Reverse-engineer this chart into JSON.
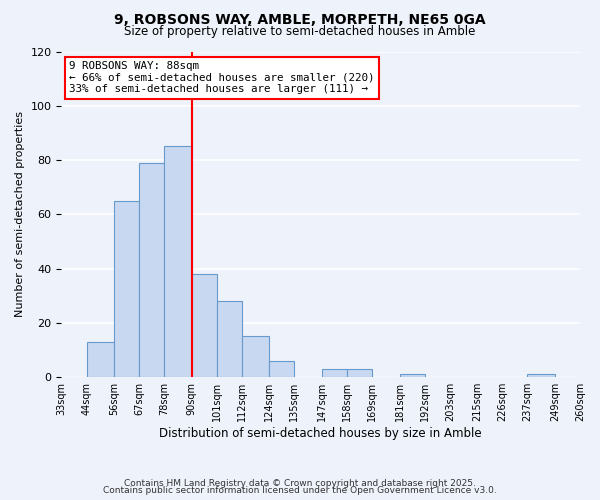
{
  "title": "9, ROBSONS WAY, AMBLE, MORPETH, NE65 0GA",
  "subtitle": "Size of property relative to semi-detached houses in Amble",
  "xlabel": "Distribution of semi-detached houses by size in Amble",
  "ylabel": "Number of semi-detached properties",
  "bin_labels": [
    "33sqm",
    "44sqm",
    "56sqm",
    "67sqm",
    "78sqm",
    "90sqm",
    "101sqm",
    "112sqm",
    "124sqm",
    "135sqm",
    "147sqm",
    "158sqm",
    "169sqm",
    "181sqm",
    "192sqm",
    "203sqm",
    "215sqm",
    "226sqm",
    "237sqm",
    "249sqm",
    "260sqm"
  ],
  "bin_edges": [
    33,
    44,
    56,
    67,
    78,
    90,
    101,
    112,
    124,
    135,
    147,
    158,
    169,
    181,
    192,
    203,
    215,
    226,
    237,
    249,
    260
  ],
  "bar_heights": [
    0,
    13,
    65,
    79,
    85,
    38,
    28,
    15,
    6,
    0,
    3,
    3,
    0,
    1,
    0,
    0,
    0,
    0,
    1,
    0,
    0
  ],
  "bar_color": "#c8d8f0",
  "bar_edge_color": "#6699cc",
  "vline_x": 90,
  "vline_color": "red",
  "annotation_title": "9 ROBSONS WAY: 88sqm",
  "annotation_line1": "← 66% of semi-detached houses are smaller (220)",
  "annotation_line2": "33% of semi-detached houses are larger (111) →",
  "annotation_box_color": "#ffffff",
  "annotation_box_edge": "red",
  "ylim": [
    0,
    120
  ],
  "footer1": "Contains HM Land Registry data © Crown copyright and database right 2025.",
  "footer2": "Contains public sector information licensed under the Open Government Licence v3.0.",
  "bg_color": "#eef2fb"
}
